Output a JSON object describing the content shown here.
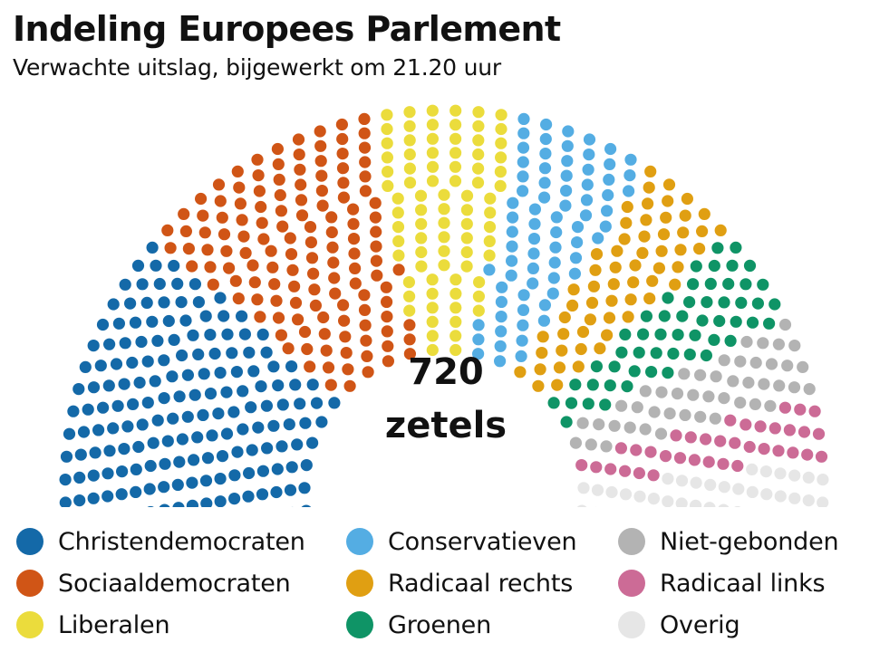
{
  "chart_data": {
    "type": "parliament",
    "title": "Indeling Europees Parlement",
    "subtitle": "Verwachte uitslag, bijgewerkt om 21.20 uur",
    "total_seats": 720,
    "center_total": "720",
    "center_unit": "zetels",
    "parties": [
      {
        "name": "Christendemocraten",
        "seats": 186,
        "color": "#1469a8"
      },
      {
        "name": "Sociaaldemocraten",
        "seats": 133,
        "color": "#d05516"
      },
      {
        "name": "Liberalen",
        "seats": 82,
        "color": "#ebdc3c"
      },
      {
        "name": "Conservatieven",
        "seats": 73,
        "color": "#54ade3"
      },
      {
        "name": "Radicaal rechts",
        "seats": 58,
        "color": "#e09f12"
      },
      {
        "name": "Groenen",
        "seats": 53,
        "color": "#0f9466"
      },
      {
        "name": "Niet-gebonden",
        "seats": 45,
        "color": "#b3b3b3"
      },
      {
        "name": "Radicaal links",
        "seats": 36,
        "color": "#cc6b96"
      },
      {
        "name": "Overig",
        "seats": 54,
        "color": "#e6e6e6"
      }
    ],
    "legend_placement": "bottom"
  }
}
